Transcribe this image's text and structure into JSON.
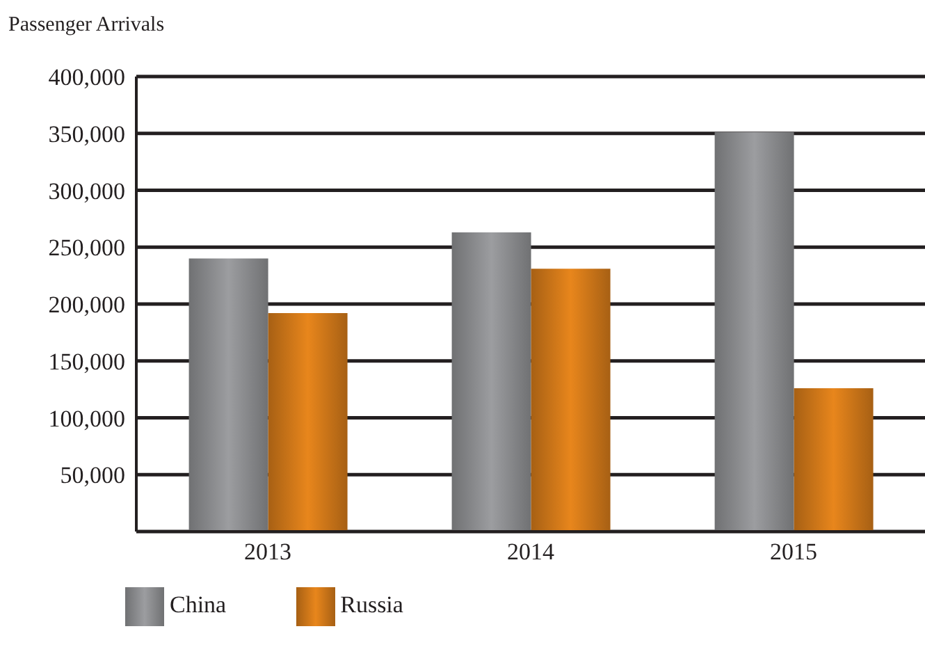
{
  "chart_data": {
    "type": "bar",
    "ylabel": "Passenger Arrivals",
    "categories": [
      "2013",
      "2014",
      "2015"
    ],
    "series": [
      {
        "name": "China",
        "color": "#9c9da0",
        "values": [
          240000,
          263000,
          351000
        ]
      },
      {
        "name": "Russia",
        "color": "#e8861c",
        "values": [
          192000,
          231000,
          126000
        ]
      }
    ],
    "ylim": [
      0,
      400000
    ],
    "yticks": [
      {
        "value": 0,
        "label": null
      },
      {
        "value": 50000,
        "label": "50,000"
      },
      {
        "value": 100000,
        "label": "100,000"
      },
      {
        "value": 150000,
        "label": "150,000"
      },
      {
        "value": 200000,
        "label": "200,000"
      },
      {
        "value": 250000,
        "label": "250,000"
      },
      {
        "value": 300000,
        "label": "300,000"
      },
      {
        "value": 350000,
        "label": "350,000"
      },
      {
        "value": 400000,
        "label": "400,000"
      }
    ],
    "grid": "y",
    "legend": "bottom left"
  }
}
